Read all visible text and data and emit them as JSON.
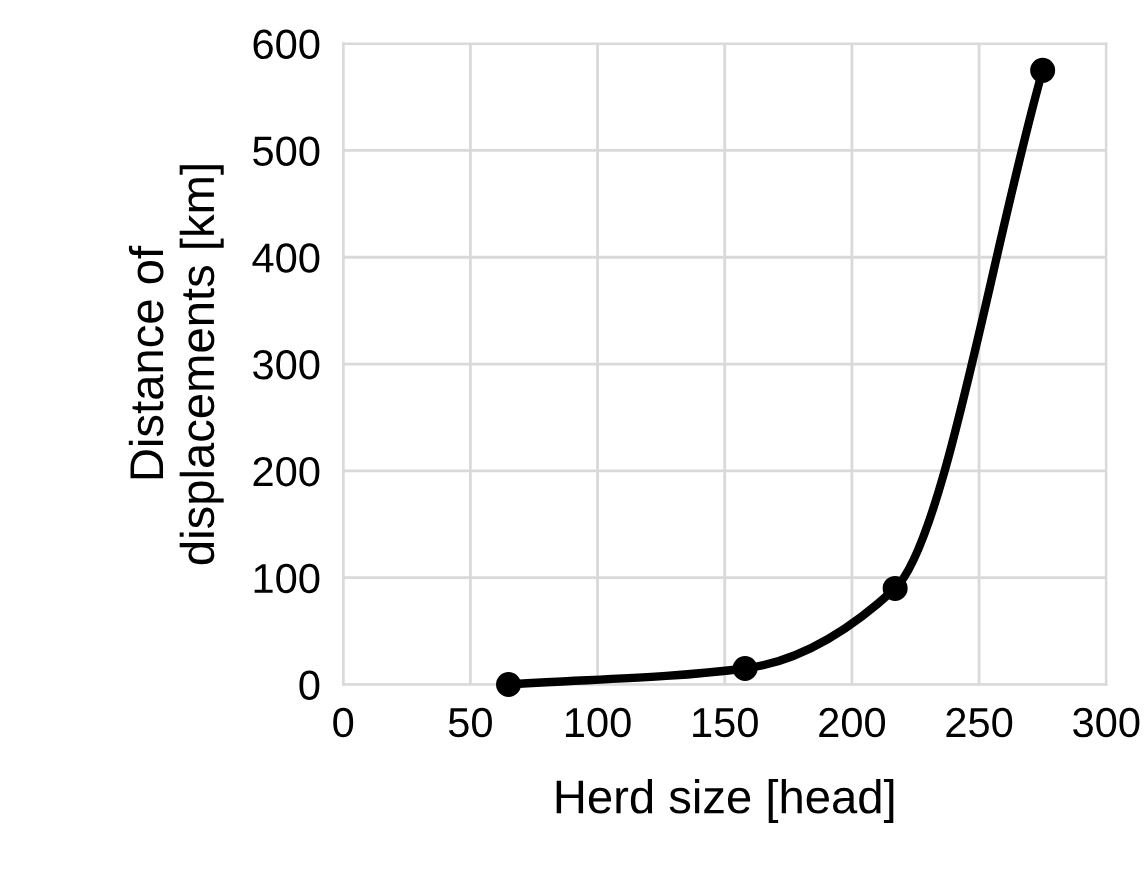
{
  "chart_data": {
    "type": "line",
    "xlabel": "Herd size [head]",
    "ylabel": "Distance of\ndisplacements [km]",
    "series": [
      {
        "color": "#000000",
        "x": [
          65,
          158,
          217,
          275
        ],
        "values": [
          0,
          15,
          90,
          575
        ]
      }
    ],
    "xlim": [
      0,
      300
    ],
    "xticks": [
      0,
      50,
      100,
      150,
      200,
      250,
      300
    ],
    "ylim": [
      0,
      600
    ],
    "yticks": [
      0,
      100,
      200,
      300,
      400,
      500,
      600
    ],
    "grid": true,
    "marker": "circle",
    "line_style": "solid"
  }
}
